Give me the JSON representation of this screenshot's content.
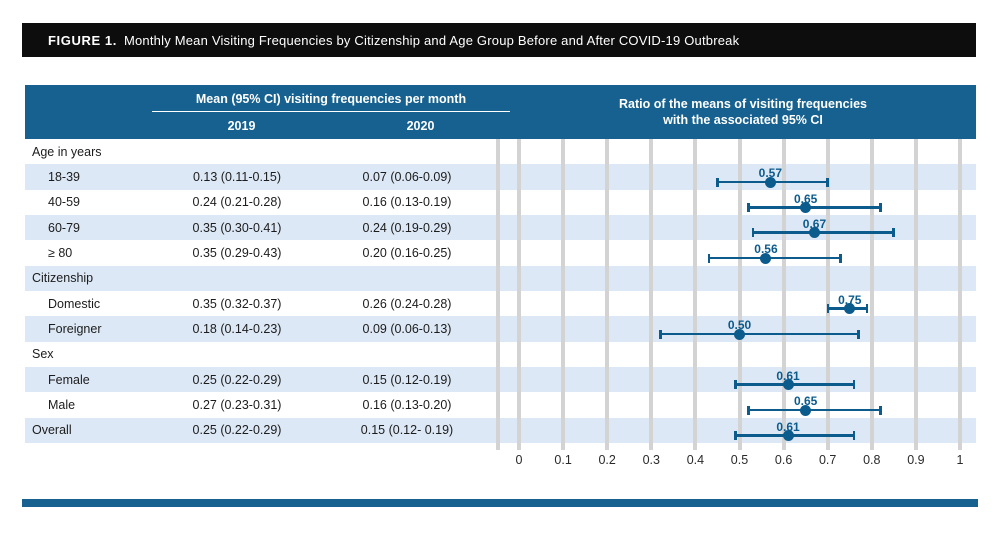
{
  "figure_title": {
    "label": "FIGURE 1.",
    "text": "Monthly Mean Visiting Frequencies by Citizenship and Age Group Before and After COVID-19 Outbreak"
  },
  "table": {
    "group_header": "Mean (95% CI) visiting frequencies per month",
    "col_2019": "2019",
    "col_2020": "2020",
    "rows": [
      {
        "label": "Age in years",
        "indent": false,
        "v2019": "",
        "v2020": "",
        "ratio": null,
        "ratio_label": "",
        "ci_low": null,
        "ci_high": null
      },
      {
        "label": "18-39",
        "indent": true,
        "v2019": "0.13 (0.11-0.15)",
        "v2020": "0.07 (0.06-0.09)",
        "ratio": 0.57,
        "ratio_label": "0.57",
        "ci_low": 0.45,
        "ci_high": 0.7
      },
      {
        "label": "40-59",
        "indent": true,
        "v2019": "0.24 (0.21-0.28)",
        "v2020": "0.16 (0.13-0.19)",
        "ratio": 0.65,
        "ratio_label": "0.65",
        "ci_low": 0.52,
        "ci_high": 0.82
      },
      {
        "label": "60-79",
        "indent": true,
        "v2019": "0.35 (0.30-0.41)",
        "v2020": "0.24 (0.19-0.29)",
        "ratio": 0.67,
        "ratio_label": "0.67",
        "ci_low": 0.53,
        "ci_high": 0.85
      },
      {
        "label": "≥ 80",
        "indent": true,
        "v2019": "0.35 (0.29-0.43)",
        "v2020": "0.20 (0.16-0.25)",
        "ratio": 0.56,
        "ratio_label": "0.56",
        "ci_low": 0.43,
        "ci_high": 0.73
      },
      {
        "label": "Citizenship",
        "indent": false,
        "v2019": "",
        "v2020": "",
        "ratio": null,
        "ratio_label": "",
        "ci_low": null,
        "ci_high": null
      },
      {
        "label": "Domestic",
        "indent": true,
        "v2019": "0.35 (0.32-0.37)",
        "v2020": "0.26 (0.24-0.28)",
        "ratio": 0.75,
        "ratio_label": "0.75",
        "ci_low": 0.7,
        "ci_high": 0.79
      },
      {
        "label": "Foreigner",
        "indent": true,
        "v2019": "0.18 (0.14-0.23)",
        "v2020": "0.09 (0.06-0.13)",
        "ratio": 0.5,
        "ratio_label": "0.50",
        "ci_low": 0.32,
        "ci_high": 0.77
      },
      {
        "label": "Sex",
        "indent": false,
        "v2019": "",
        "v2020": "",
        "ratio": null,
        "ratio_label": "",
        "ci_low": null,
        "ci_high": null
      },
      {
        "label": "Female",
        "indent": true,
        "v2019": "0.25 (0.22-0.29)",
        "v2020": "0.15 (0.12-0.19)",
        "ratio": 0.61,
        "ratio_label": "0.61",
        "ci_low": 0.49,
        "ci_high": 0.76
      },
      {
        "label": "Male",
        "indent": true,
        "v2019": "0.27 (0.23-0.31)",
        "v2020": "0.16 (0.13-0.20)",
        "ratio": 0.65,
        "ratio_label": "0.65",
        "ci_low": 0.52,
        "ci_high": 0.82
      },
      {
        "label": "Overall",
        "indent": false,
        "v2019": "0.25 (0.22-0.29)",
        "v2020": "0.15 (0.12- 0.19)",
        "ratio": 0.61,
        "ratio_label": "0.61",
        "ci_low": 0.49,
        "ci_high": 0.76
      }
    ]
  },
  "plot_header": {
    "line1": "Ratio of the means of visiting frequencies",
    "line2": "with the associated 95% CI"
  },
  "chart_data": {
    "type": "forest",
    "title": "Ratio of the means of visiting frequencies with the associated 95% CI",
    "xlabel": "",
    "xlim": [
      0,
      1
    ],
    "x_ticks": [
      0,
      0.1,
      0.2,
      0.3,
      0.4,
      0.5,
      0.6,
      0.7,
      0.8,
      0.9,
      1
    ],
    "x_tick_labels": [
      "0",
      "0.1",
      "0.2",
      "0.3",
      "0.4",
      "0.5",
      "0.6",
      "0.7",
      "0.8",
      "0.9",
      "1"
    ],
    "grid": true,
    "rows": [
      {
        "category": "18-39",
        "ratio": 0.57,
        "ci_low": 0.45,
        "ci_high": 0.7
      },
      {
        "category": "40-59",
        "ratio": 0.65,
        "ci_low": 0.52,
        "ci_high": 0.82
      },
      {
        "category": "60-79",
        "ratio": 0.67,
        "ci_low": 0.53,
        "ci_high": 0.85
      },
      {
        "category": "≥ 80",
        "ratio": 0.56,
        "ci_low": 0.43,
        "ci_high": 0.73
      },
      {
        "category": "Domestic",
        "ratio": 0.75,
        "ci_low": 0.7,
        "ci_high": 0.79
      },
      {
        "category": "Foreigner",
        "ratio": 0.5,
        "ci_low": 0.32,
        "ci_high": 0.77
      },
      {
        "category": "Female",
        "ratio": 0.61,
        "ci_low": 0.49,
        "ci_high": 0.76
      },
      {
        "category": "Male",
        "ratio": 0.65,
        "ci_low": 0.52,
        "ci_high": 0.82
      },
      {
        "category": "Overall",
        "ratio": 0.61,
        "ci_low": 0.49,
        "ci_high": 0.76
      }
    ]
  },
  "colors": {
    "header_blue": "#16618F",
    "stripe_blue": "#DCE8F5",
    "marker_blue": "#0C5B8D",
    "gridline_gray": "#D3D3D3",
    "title_bar_black": "#0D0D0D"
  }
}
